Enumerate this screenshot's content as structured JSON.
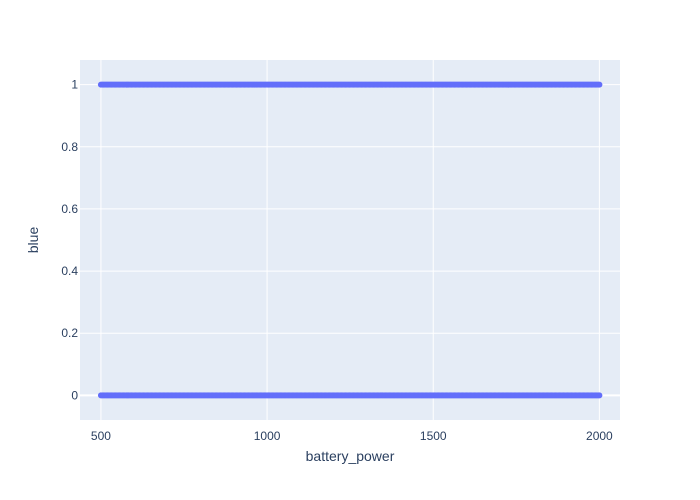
{
  "chart_data": {
    "type": "scatter",
    "title": "",
    "xlabel": "battery_power",
    "ylabel": "blue",
    "xlim": [
      437,
      2062
    ],
    "ylim": [
      -0.0794,
      1.0794
    ],
    "x_ticks": [
      500,
      1000,
      1500,
      2000
    ],
    "x_tick_labels": [
      "500",
      "1000",
      "1500",
      "2000"
    ],
    "y_ticks": [
      0,
      0.2,
      0.4,
      0.6,
      0.8,
      1
    ],
    "y_tick_labels": [
      "0",
      "0.2",
      "0.4",
      "0.6",
      "0.8",
      "1"
    ],
    "grid": true,
    "legend": "none",
    "series": [
      {
        "marker_color": "#636efa",
        "note_points": "dense points spanning x from 500 to 2000 at y values 0 and 1",
        "x_min": 500,
        "x_max": 2000,
        "y_levels": [
          0,
          1
        ]
      }
    ]
  },
  "colors": {
    "plot_background": "#e5ecf6",
    "grid": "#ffffff",
    "text": "#2a3f5f",
    "marker": "#636efa"
  }
}
